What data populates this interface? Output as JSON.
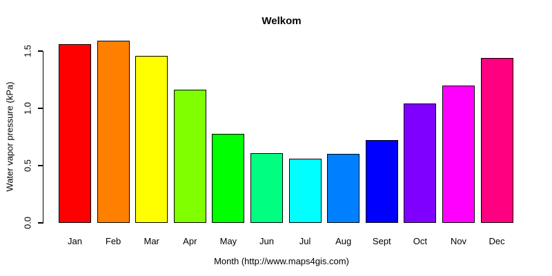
{
  "chart_data": {
    "type": "bar",
    "title": "Welkom",
    "xlabel": "Month (http://www.maps4gis.com)",
    "ylabel": "Water vapor pressure (kPa)",
    "categories": [
      "Jan",
      "Feb",
      "Mar",
      "Apr",
      "May",
      "Jun",
      "Jul",
      "Aug",
      "Sept",
      "Oct",
      "Nov",
      "Dec"
    ],
    "values": [
      1.56,
      1.59,
      1.46,
      1.16,
      0.78,
      0.61,
      0.56,
      0.6,
      0.72,
      1.04,
      1.2,
      1.44
    ],
    "bar_colors": [
      "#FF0000",
      "#FF8000",
      "#FFFF00",
      "#80FF00",
      "#00FF00",
      "#00FF80",
      "#00FFFF",
      "#0080FF",
      "#0000FF",
      "#8000FF",
      "#FF00FF",
      "#FF0080"
    ],
    "bar_edge_color": "#000000",
    "ylim": [
      0,
      1.5
    ],
    "yticks": [
      0.0,
      0.5,
      1.0,
      1.5
    ],
    "ytick_labels": [
      "0.0",
      "0.5",
      "1.0",
      "1.5"
    ],
    "grid": false,
    "legend": null,
    "background_color": "#FFFFFF",
    "text_color": "#000000"
  }
}
